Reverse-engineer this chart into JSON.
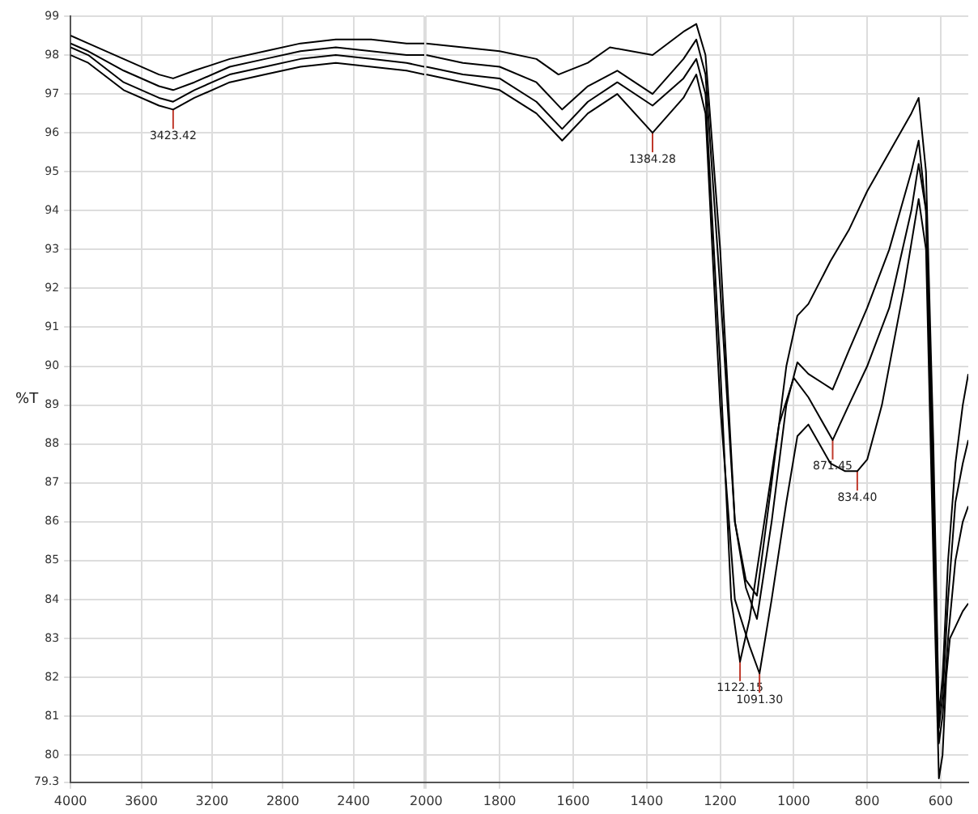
{
  "chart_data": [
    {
      "type": "line",
      "ylabel": "%T",
      "legend": false,
      "xlim": [
        4000,
        2000
      ],
      "xticks": [
        4000,
        3600,
        3200,
        2800,
        2400,
        {
          "value": 2000,
          "label": null
        }
      ],
      "ylim": [
        79.3,
        99
      ],
      "yticks": [
        79.3,
        80,
        81,
        82,
        83,
        84,
        85,
        86,
        87,
        88,
        89,
        90,
        91,
        92,
        93,
        94,
        95,
        96,
        97,
        98,
        99
      ],
      "grid": true,
      "marker": "none",
      "line_style": "solid",
      "series": [
        {
          "color": "#000000",
          "x": [
            4000,
            3900,
            3700,
            3500,
            3420,
            3300,
            3100,
            2900,
            2700,
            2500,
            2300,
            2100,
            2000
          ],
          "values": [
            98.5,
            98.3,
            97.9,
            97.5,
            97.4,
            97.6,
            97.9,
            98.1,
            98.3,
            98.4,
            98.4,
            98.3,
            98.3
          ]
        },
        {
          "color": "#000000",
          "x": [
            4000,
            3900,
            3700,
            3500,
            3420,
            3300,
            3100,
            2900,
            2700,
            2500,
            2300,
            2100,
            2000
          ],
          "values": [
            98.3,
            98.1,
            97.6,
            97.2,
            97.1,
            97.3,
            97.7,
            97.9,
            98.1,
            98.2,
            98.1,
            98.0,
            98.0
          ]
        },
        {
          "color": "#000000",
          "x": [
            4000,
            3900,
            3700,
            3500,
            3420,
            3300,
            3100,
            2900,
            2700,
            2500,
            2300,
            2100,
            2000
          ],
          "values": [
            98.2,
            98.0,
            97.3,
            96.9,
            96.8,
            97.1,
            97.5,
            97.7,
            97.9,
            98.0,
            97.9,
            97.8,
            97.7
          ]
        },
        {
          "color": "#000000",
          "x": [
            4000,
            3900,
            3700,
            3500,
            3420,
            3300,
            3100,
            2900,
            2700,
            2500,
            2300,
            2100,
            2000
          ],
          "values": [
            98.0,
            97.8,
            97.1,
            96.7,
            96.6,
            96.9,
            97.3,
            97.5,
            97.7,
            97.8,
            97.7,
            97.6,
            97.5
          ]
        }
      ],
      "annotations": [
        {
          "text": "3423.42",
          "x": 3420,
          "y": 96.6
        }
      ]
    },
    {
      "type": "line",
      "xlim": [
        2000,
        525
      ],
      "xticks": [
        2000,
        1800,
        1600,
        1400,
        1200,
        1000,
        800,
        600
      ],
      "ylim": [
        79.3,
        99
      ],
      "yticks": [
        79.3,
        80,
        81,
        82,
        83,
        84,
        85,
        86,
        87,
        88,
        89,
        90,
        91,
        92,
        93,
        94,
        95,
        96,
        97,
        98,
        99
      ],
      "tick_labels": "x",
      "legend": false,
      "grid": true,
      "marker": "none",
      "line_style": "solid",
      "series": [
        {
          "color": "#000000",
          "x": [
            2000,
            1900,
            1800,
            1700,
            1640,
            1560,
            1500,
            1384,
            1300,
            1265,
            1240,
            1200,
            1160,
            1130,
            1100,
            1060,
            1020,
            990,
            960,
            900,
            850,
            800,
            740,
            680,
            660,
            640,
            620,
            605,
            595,
            580,
            560,
            540,
            525
          ],
          "values": [
            98.3,
            98.2,
            98.1,
            97.9,
            97.5,
            97.8,
            98.2,
            98.0,
            98.6,
            98.8,
            98.0,
            93,
            86,
            84.5,
            84.1,
            87,
            90,
            91.3,
            91.6,
            92.7,
            93.5,
            94.5,
            95.5,
            96.5,
            96.9,
            95,
            88,
            81.0,
            82,
            85,
            87.5,
            89,
            89.8
          ]
        },
        {
          "color": "#000000",
          "x": [
            2000,
            1900,
            1800,
            1700,
            1630,
            1560,
            1480,
            1384,
            1300,
            1265,
            1240,
            1200,
            1160,
            1130,
            1100,
            1060,
            1020,
            990,
            960,
            894,
            850,
            800,
            740,
            680,
            660,
            640,
            620,
            605,
            595,
            580,
            560,
            540,
            525
          ],
          "values": [
            98.0,
            97.8,
            97.7,
            97.3,
            96.6,
            97.2,
            97.6,
            97.0,
            97.9,
            98.4,
            97.5,
            92,
            86,
            84.3,
            83.5,
            86,
            89,
            90.1,
            89.8,
            89.4,
            90.4,
            91.5,
            93,
            95,
            95.8,
            94,
            87,
            80.7,
            81.5,
            84,
            86.5,
            87.5,
            88.1
          ]
        },
        {
          "color": "#000000",
          "x": [
            2000,
            1900,
            1800,
            1700,
            1630,
            1560,
            1480,
            1384,
            1300,
            1265,
            1240,
            1200,
            1170,
            1146,
            1120,
            1080,
            1040,
            1000,
            960,
            894,
            850,
            800,
            740,
            680,
            660,
            640,
            620,
            605,
            595,
            580,
            560,
            540,
            525
          ],
          "values": [
            97.7,
            97.5,
            97.4,
            96.8,
            96.1,
            96.8,
            97.3,
            96.7,
            97.4,
            97.9,
            97.0,
            90,
            84,
            82.4,
            83.5,
            86,
            88.5,
            89.7,
            89.2,
            88.1,
            89,
            90,
            91.5,
            94,
            95.2,
            94,
            86,
            80.3,
            81,
            83,
            85,
            86,
            86.4
          ]
        },
        {
          "color": "#000000",
          "x": [
            2000,
            1900,
            1800,
            1700,
            1630,
            1560,
            1480,
            1384,
            1300,
            1265,
            1240,
            1200,
            1160,
            1120,
            1093,
            1060,
            1020,
            990,
            960,
            900,
            860,
            827,
            800,
            760,
            700,
            660,
            640,
            620,
            605,
            595,
            585,
            575,
            560,
            540,
            525
          ],
          "values": [
            97.5,
            97.3,
            97.1,
            96.5,
            95.8,
            96.5,
            97.0,
            96.0,
            96.9,
            97.5,
            96.5,
            89,
            84,
            82.8,
            82.1,
            84,
            86.5,
            88.2,
            88.5,
            87.5,
            87.3,
            87.3,
            87.6,
            89,
            92,
            94.3,
            93,
            85,
            79.4,
            80,
            82,
            83,
            83.3,
            83.7,
            83.9
          ]
        }
      ],
      "annotations": [
        {
          "text": "1384.28",
          "x": 1384,
          "y": 96.0
        },
        {
          "text": "1122.15",
          "x": 1146,
          "y": 82.4
        },
        {
          "text": "1091.30",
          "x": 1093,
          "y": 82.1
        },
        {
          "text": "871.45",
          "x": 894,
          "y": 88.1
        },
        {
          "text": "834.40",
          "x": 827,
          "y": 87.3
        }
      ]
    }
  ]
}
